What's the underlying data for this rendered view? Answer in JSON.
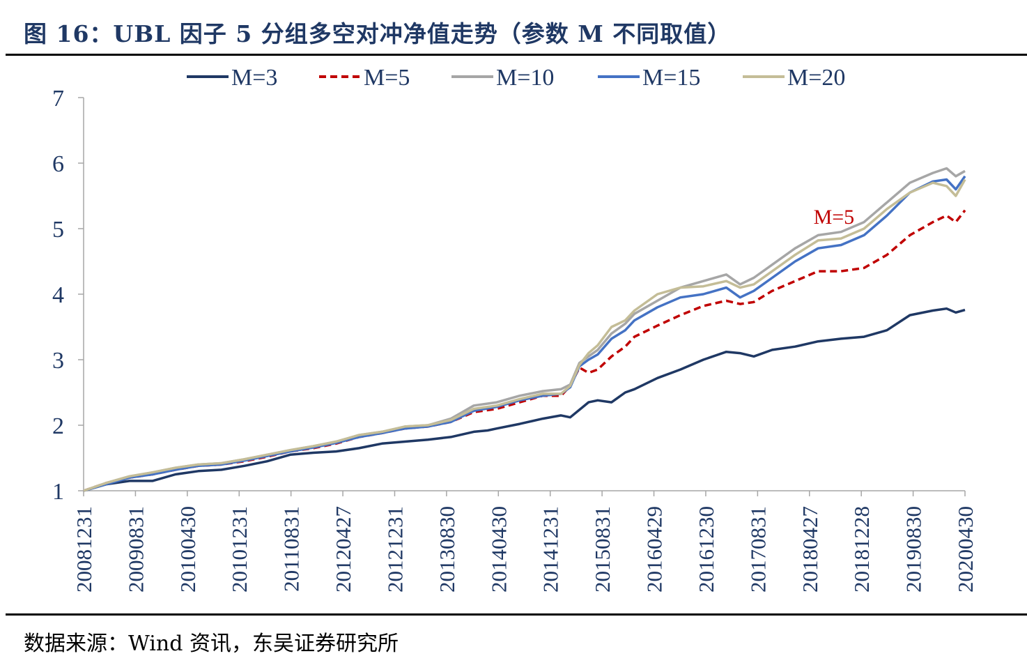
{
  "header": {
    "title": "图 16：UBL 因子 5 分组多空对冲净值走势（参数 M 不同取值）"
  },
  "footer": {
    "source": "数据来源：Wind 资讯，东吴证券研究所"
  },
  "chart_data": {
    "type": "line",
    "x_tick_labels": [
      "20081231",
      "20090831",
      "20100430",
      "20101231",
      "20110831",
      "20120427",
      "20121231",
      "20130830",
      "20140430",
      "20141231",
      "20150831",
      "20160429",
      "20161230",
      "20170831",
      "20180427",
      "20181228",
      "20190830",
      "20200430"
    ],
    "ylim": [
      1,
      7
    ],
    "y_ticks": [
      1,
      2,
      3,
      4,
      5,
      6,
      7
    ],
    "legend_position": "top",
    "annotation": {
      "text": "M=5",
      "color": "#c00000",
      "at_x": 159,
      "at_y": 5.2
    },
    "series": [
      {
        "name": "M=3",
        "color": "#1f3864",
        "dash": false,
        "points": [
          [
            0,
            1.0
          ],
          [
            5,
            1.1
          ],
          [
            10,
            1.15
          ],
          [
            15,
            1.15
          ],
          [
            20,
            1.25
          ],
          [
            25,
            1.3
          ],
          [
            30,
            1.32
          ],
          [
            35,
            1.38
          ],
          [
            40,
            1.45
          ],
          [
            45,
            1.55
          ],
          [
            50,
            1.58
          ],
          [
            55,
            1.6
          ],
          [
            60,
            1.65
          ],
          [
            65,
            1.72
          ],
          [
            70,
            1.75
          ],
          [
            75,
            1.78
          ],
          [
            80,
            1.82
          ],
          [
            85,
            1.9
          ],
          [
            88,
            1.92
          ],
          [
            90,
            1.95
          ],
          [
            95,
            2.02
          ],
          [
            100,
            2.1
          ],
          [
            104,
            2.15
          ],
          [
            106,
            2.12
          ],
          [
            110,
            2.35
          ],
          [
            112,
            2.38
          ],
          [
            115,
            2.35
          ],
          [
            118,
            2.5
          ],
          [
            120,
            2.55
          ],
          [
            125,
            2.72
          ],
          [
            130,
            2.85
          ],
          [
            135,
            3.0
          ],
          [
            140,
            3.12
          ],
          [
            143,
            3.1
          ],
          [
            146,
            3.05
          ],
          [
            150,
            3.15
          ],
          [
            155,
            3.2
          ],
          [
            160,
            3.28
          ],
          [
            165,
            3.32
          ],
          [
            170,
            3.35
          ],
          [
            175,
            3.45
          ],
          [
            180,
            3.68
          ],
          [
            185,
            3.75
          ],
          [
            188,
            3.78
          ],
          [
            190,
            3.72
          ],
          [
            192,
            3.76
          ]
        ]
      },
      {
        "name": "M=5",
        "color": "#c00000",
        "dash": true,
        "points": [
          [
            0,
            1.0
          ],
          [
            5,
            1.12
          ],
          [
            10,
            1.2
          ],
          [
            15,
            1.25
          ],
          [
            20,
            1.32
          ],
          [
            25,
            1.38
          ],
          [
            30,
            1.4
          ],
          [
            35,
            1.45
          ],
          [
            40,
            1.52
          ],
          [
            45,
            1.6
          ],
          [
            50,
            1.65
          ],
          [
            55,
            1.72
          ],
          [
            60,
            1.82
          ],
          [
            65,
            1.88
          ],
          [
            70,
            1.95
          ],
          [
            75,
            1.98
          ],
          [
            80,
            2.05
          ],
          [
            85,
            2.2
          ],
          [
            90,
            2.25
          ],
          [
            95,
            2.35
          ],
          [
            100,
            2.45
          ],
          [
            104,
            2.45
          ],
          [
            106,
            2.6
          ],
          [
            108,
            2.88
          ],
          [
            110,
            2.8
          ],
          [
            112,
            2.85
          ],
          [
            115,
            3.05
          ],
          [
            118,
            3.2
          ],
          [
            120,
            3.35
          ],
          [
            125,
            3.52
          ],
          [
            130,
            3.68
          ],
          [
            135,
            3.82
          ],
          [
            140,
            3.9
          ],
          [
            143,
            3.85
          ],
          [
            146,
            3.88
          ],
          [
            150,
            4.05
          ],
          [
            155,
            4.2
          ],
          [
            160,
            4.35
          ],
          [
            165,
            4.35
          ],
          [
            170,
            4.4
          ],
          [
            175,
            4.6
          ],
          [
            180,
            4.9
          ],
          [
            185,
            5.1
          ],
          [
            188,
            5.2
          ],
          [
            190,
            5.1
          ],
          [
            192,
            5.28
          ]
        ]
      },
      {
        "name": "M=10",
        "color": "#a6a6a6",
        "dash": false,
        "points": [
          [
            0,
            1.0
          ],
          [
            5,
            1.12
          ],
          [
            10,
            1.22
          ],
          [
            15,
            1.28
          ],
          [
            20,
            1.35
          ],
          [
            25,
            1.4
          ],
          [
            30,
            1.42
          ],
          [
            35,
            1.48
          ],
          [
            40,
            1.55
          ],
          [
            45,
            1.62
          ],
          [
            50,
            1.68
          ],
          [
            55,
            1.75
          ],
          [
            60,
            1.85
          ],
          [
            65,
            1.9
          ],
          [
            70,
            1.98
          ],
          [
            75,
            2.0
          ],
          [
            80,
            2.1
          ],
          [
            85,
            2.3
          ],
          [
            90,
            2.35
          ],
          [
            95,
            2.45
          ],
          [
            100,
            2.52
          ],
          [
            104,
            2.55
          ],
          [
            106,
            2.62
          ],
          [
            108,
            2.95
          ],
          [
            110,
            3.05
          ],
          [
            112,
            3.15
          ],
          [
            115,
            3.4
          ],
          [
            118,
            3.55
          ],
          [
            120,
            3.7
          ],
          [
            125,
            3.9
          ],
          [
            130,
            4.1
          ],
          [
            135,
            4.2
          ],
          [
            140,
            4.3
          ],
          [
            143,
            4.15
          ],
          [
            146,
            4.25
          ],
          [
            150,
            4.45
          ],
          [
            155,
            4.7
          ],
          [
            160,
            4.9
          ],
          [
            165,
            4.95
          ],
          [
            170,
            5.1
          ],
          [
            175,
            5.4
          ],
          [
            180,
            5.7
          ],
          [
            185,
            5.85
          ],
          [
            188,
            5.92
          ],
          [
            190,
            5.8
          ],
          [
            192,
            5.88
          ]
        ]
      },
      {
        "name": "M=15",
        "color": "#4472c4",
        "dash": false,
        "points": [
          [
            0,
            1.0
          ],
          [
            5,
            1.1
          ],
          [
            10,
            1.2
          ],
          [
            15,
            1.25
          ],
          [
            20,
            1.32
          ],
          [
            25,
            1.38
          ],
          [
            30,
            1.4
          ],
          [
            35,
            1.46
          ],
          [
            40,
            1.53
          ],
          [
            45,
            1.6
          ],
          [
            50,
            1.66
          ],
          [
            55,
            1.73
          ],
          [
            60,
            1.82
          ],
          [
            65,
            1.88
          ],
          [
            70,
            1.95
          ],
          [
            75,
            1.98
          ],
          [
            80,
            2.05
          ],
          [
            85,
            2.22
          ],
          [
            90,
            2.28
          ],
          [
            95,
            2.38
          ],
          [
            100,
            2.45
          ],
          [
            104,
            2.48
          ],
          [
            106,
            2.58
          ],
          [
            108,
            2.9
          ],
          [
            110,
            3.0
          ],
          [
            112,
            3.08
          ],
          [
            115,
            3.32
          ],
          [
            118,
            3.45
          ],
          [
            120,
            3.6
          ],
          [
            125,
            3.8
          ],
          [
            130,
            3.95
          ],
          [
            135,
            4.0
          ],
          [
            140,
            4.1
          ],
          [
            143,
            3.95
          ],
          [
            146,
            4.05
          ],
          [
            150,
            4.25
          ],
          [
            155,
            4.5
          ],
          [
            160,
            4.7
          ],
          [
            165,
            4.75
          ],
          [
            170,
            4.9
          ],
          [
            175,
            5.2
          ],
          [
            180,
            5.55
          ],
          [
            185,
            5.72
          ],
          [
            188,
            5.75
          ],
          [
            190,
            5.6
          ],
          [
            192,
            5.8
          ]
        ]
      },
      {
        "name": "M=20",
        "color": "#c4bd97",
        "dash": false,
        "points": [
          [
            0,
            1.0
          ],
          [
            5,
            1.12
          ],
          [
            10,
            1.22
          ],
          [
            15,
            1.28
          ],
          [
            20,
            1.35
          ],
          [
            25,
            1.4
          ],
          [
            30,
            1.42
          ],
          [
            35,
            1.48
          ],
          [
            40,
            1.55
          ],
          [
            45,
            1.62
          ],
          [
            50,
            1.68
          ],
          [
            55,
            1.75
          ],
          [
            60,
            1.85
          ],
          [
            65,
            1.9
          ],
          [
            70,
            1.98
          ],
          [
            75,
            2.0
          ],
          [
            80,
            2.08
          ],
          [
            85,
            2.25
          ],
          [
            90,
            2.3
          ],
          [
            95,
            2.4
          ],
          [
            100,
            2.48
          ],
          [
            104,
            2.48
          ],
          [
            106,
            2.6
          ],
          [
            108,
            2.92
          ],
          [
            110,
            3.1
          ],
          [
            112,
            3.22
          ],
          [
            115,
            3.5
          ],
          [
            118,
            3.6
          ],
          [
            120,
            3.75
          ],
          [
            125,
            4.0
          ],
          [
            130,
            4.1
          ],
          [
            135,
            4.12
          ],
          [
            140,
            4.2
          ],
          [
            143,
            4.1
          ],
          [
            146,
            4.15
          ],
          [
            150,
            4.35
          ],
          [
            155,
            4.6
          ],
          [
            160,
            4.82
          ],
          [
            165,
            4.85
          ],
          [
            170,
            5.0
          ],
          [
            175,
            5.3
          ],
          [
            180,
            5.55
          ],
          [
            185,
            5.7
          ],
          [
            188,
            5.65
          ],
          [
            190,
            5.5
          ],
          [
            192,
            5.75
          ]
        ]
      }
    ]
  }
}
